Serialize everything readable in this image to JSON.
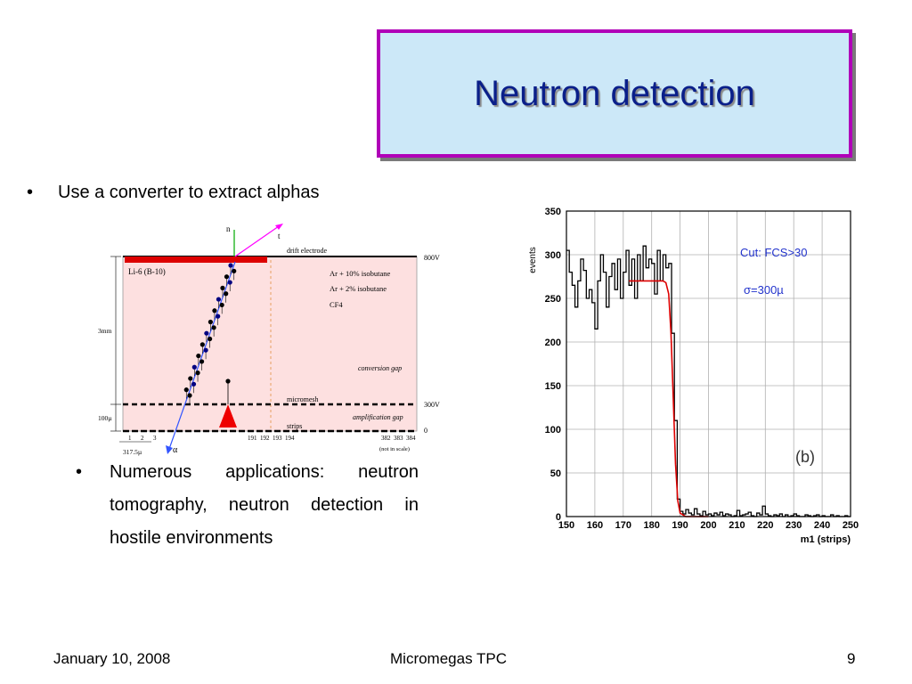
{
  "slide": {
    "title": "Neutron detection",
    "bullet_char": "•",
    "bullet1": "Use a converter to extract alphas",
    "bullet2": "Numerous applications: neutron tomography, neutron detection in hostile environments"
  },
  "diagram": {
    "incoming_label": "n",
    "triton_label": "t",
    "alpha_label": "α",
    "drift_electrode_label": "drift electrode",
    "converter_label": "Li-6  (B-10)",
    "gas_labels": [
      "Ar + 10% isobutane",
      "Ar +   2% isobutane",
      "CF4"
    ],
    "conversion_gap_label": "conversion gap",
    "micromesh_label": "micromesh",
    "strips_label": "strips",
    "amplification_gap_label": "amplification gap",
    "voltage_top": "800V",
    "voltage_mesh": "300V",
    "voltage_bottom": "0",
    "gap_size_label": "3mm",
    "amp_size_label": "100µ",
    "pitch_label": "317.5µ",
    "strip_numbers_left": [
      "1",
      "2",
      "3"
    ],
    "strip_numbers_mid": [
      "191",
      "192",
      "193",
      "194"
    ],
    "strip_numbers_right": [
      "382",
      "383",
      "384"
    ],
    "scale_note": "(not in scale)",
    "colors": {
      "gas_fill": "#fde0e0",
      "electrode": "#dd0000",
      "track": "#000080",
      "alpha_line": "#3355ff",
      "triton_line": "#ff00ff",
      "neutron_line": "#00aa00"
    }
  },
  "chart_data": {
    "type": "line",
    "ylabel": "events",
    "xlabel": "m1 (strips)",
    "xlim": [
      150,
      250
    ],
    "ylim": [
      0,
      350
    ],
    "xticks": [
      150,
      160,
      170,
      180,
      190,
      200,
      210,
      220,
      230,
      240,
      250
    ],
    "yticks": [
      0,
      50,
      100,
      150,
      200,
      250,
      300,
      350
    ],
    "grid": true,
    "annotations": [
      "Cut:  FCS>30",
      "σ=300µ",
      "(b)"
    ],
    "series": [
      {
        "style": "histogram",
        "color": "#000000",
        "x": [
          150,
          151,
          152,
          153,
          154,
          155,
          156,
          157,
          158,
          159,
          160,
          161,
          162,
          163,
          164,
          165,
          166,
          167,
          168,
          169,
          170,
          171,
          172,
          173,
          174,
          175,
          176,
          177,
          178,
          179,
          180,
          181,
          182,
          183,
          184,
          185,
          186,
          187,
          188,
          189,
          190,
          191,
          192,
          193,
          194,
          195,
          196,
          197,
          198,
          199,
          200,
          201,
          202,
          203,
          204,
          205,
          206,
          207,
          208,
          209,
          210,
          211,
          212,
          213,
          214,
          215,
          216,
          217,
          218,
          219,
          220,
          221,
          222,
          223,
          224,
          225,
          226,
          227,
          228,
          229,
          230,
          231,
          232,
          233,
          234,
          235,
          236,
          237,
          238,
          239,
          240,
          241,
          242,
          243,
          244,
          245,
          246,
          247,
          248,
          249
        ],
        "values": [
          305,
          280,
          265,
          240,
          270,
          295,
          282,
          250,
          260,
          245,
          215,
          270,
          300,
          280,
          240,
          275,
          290,
          260,
          295,
          250,
          280,
          305,
          265,
          295,
          250,
          300,
          270,
          310,
          285,
          295,
          290,
          255,
          305,
          270,
          300,
          285,
          290,
          210,
          110,
          20,
          6,
          3,
          8,
          4,
          2,
          9,
          3,
          1,
          6,
          2,
          3,
          1,
          4,
          2,
          5,
          1,
          3,
          2,
          0,
          1,
          7,
          1,
          2,
          3,
          5,
          1,
          0,
          4,
          2,
          12,
          3,
          1,
          0,
          2,
          1,
          3,
          0,
          2,
          0,
          1,
          3,
          1,
          0,
          0,
          2,
          1,
          0,
          1,
          2,
          0,
          1,
          0,
          0,
          2,
          0,
          1,
          0,
          0,
          1,
          0
        ]
      },
      {
        "style": "fit",
        "color": "#dd0000",
        "x": [
          172,
          184,
          185,
          186,
          186.8,
          187.6,
          188.4,
          189.2,
          190,
          192,
          200
        ],
        "values": [
          270,
          270,
          268,
          255,
          210,
          135,
          60,
          18,
          4,
          0,
          0
        ]
      }
    ]
  },
  "footer": {
    "date": "January 10, 2008",
    "center": "Micromegas TPC",
    "page": "9"
  }
}
